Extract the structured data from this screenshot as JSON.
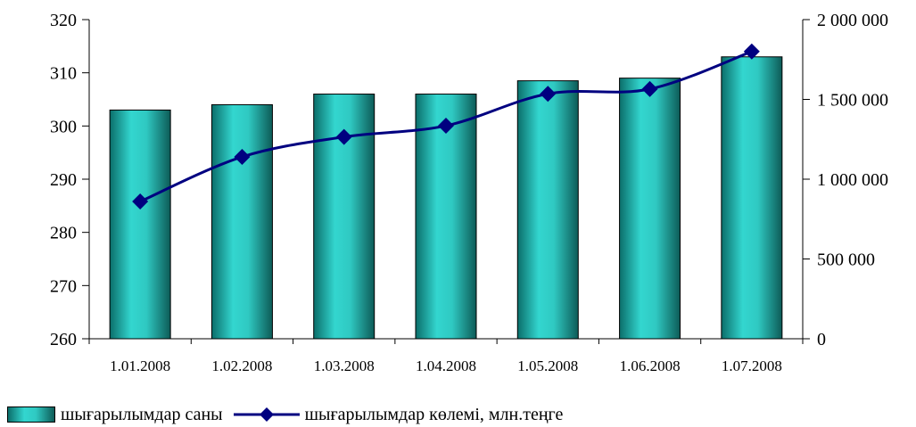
{
  "colors": {
    "bar_dark": "#0b6e6a",
    "bar_light": "#33d6cf",
    "line": "#000080"
  },
  "chart_data": {
    "type": "bar",
    "categories": [
      "1.01.2008",
      "1.02.2008",
      "1.03.2008",
      "1.04.2008",
      "1.05.2008",
      "1.06.2008",
      "1.07.2008"
    ],
    "series": [
      {
        "name": "шығарылымдар саны",
        "type": "bar",
        "axis": "left",
        "values": [
          303,
          304,
          306,
          306,
          308.5,
          309,
          313
        ]
      },
      {
        "name": "шығарылымдар көлемі, млн.теңге",
        "type": "line",
        "axis": "right",
        "values": [
          860000,
          1140000,
          1265000,
          1335000,
          1535000,
          1565000,
          1800000
        ]
      }
    ],
    "y_left": {
      "ylim": [
        260,
        320
      ],
      "ticks": [
        260,
        270,
        280,
        290,
        300,
        310,
        320
      ]
    },
    "y_right": {
      "ylim": [
        0,
        2000000
      ],
      "ticks": [
        0,
        500000,
        1000000,
        1500000,
        2000000
      ],
      "tick_labels": [
        "0",
        "500 000",
        "1 000 000",
        "1 500 000",
        "2 000 000"
      ]
    },
    "grid": false,
    "legend": "bottom"
  }
}
